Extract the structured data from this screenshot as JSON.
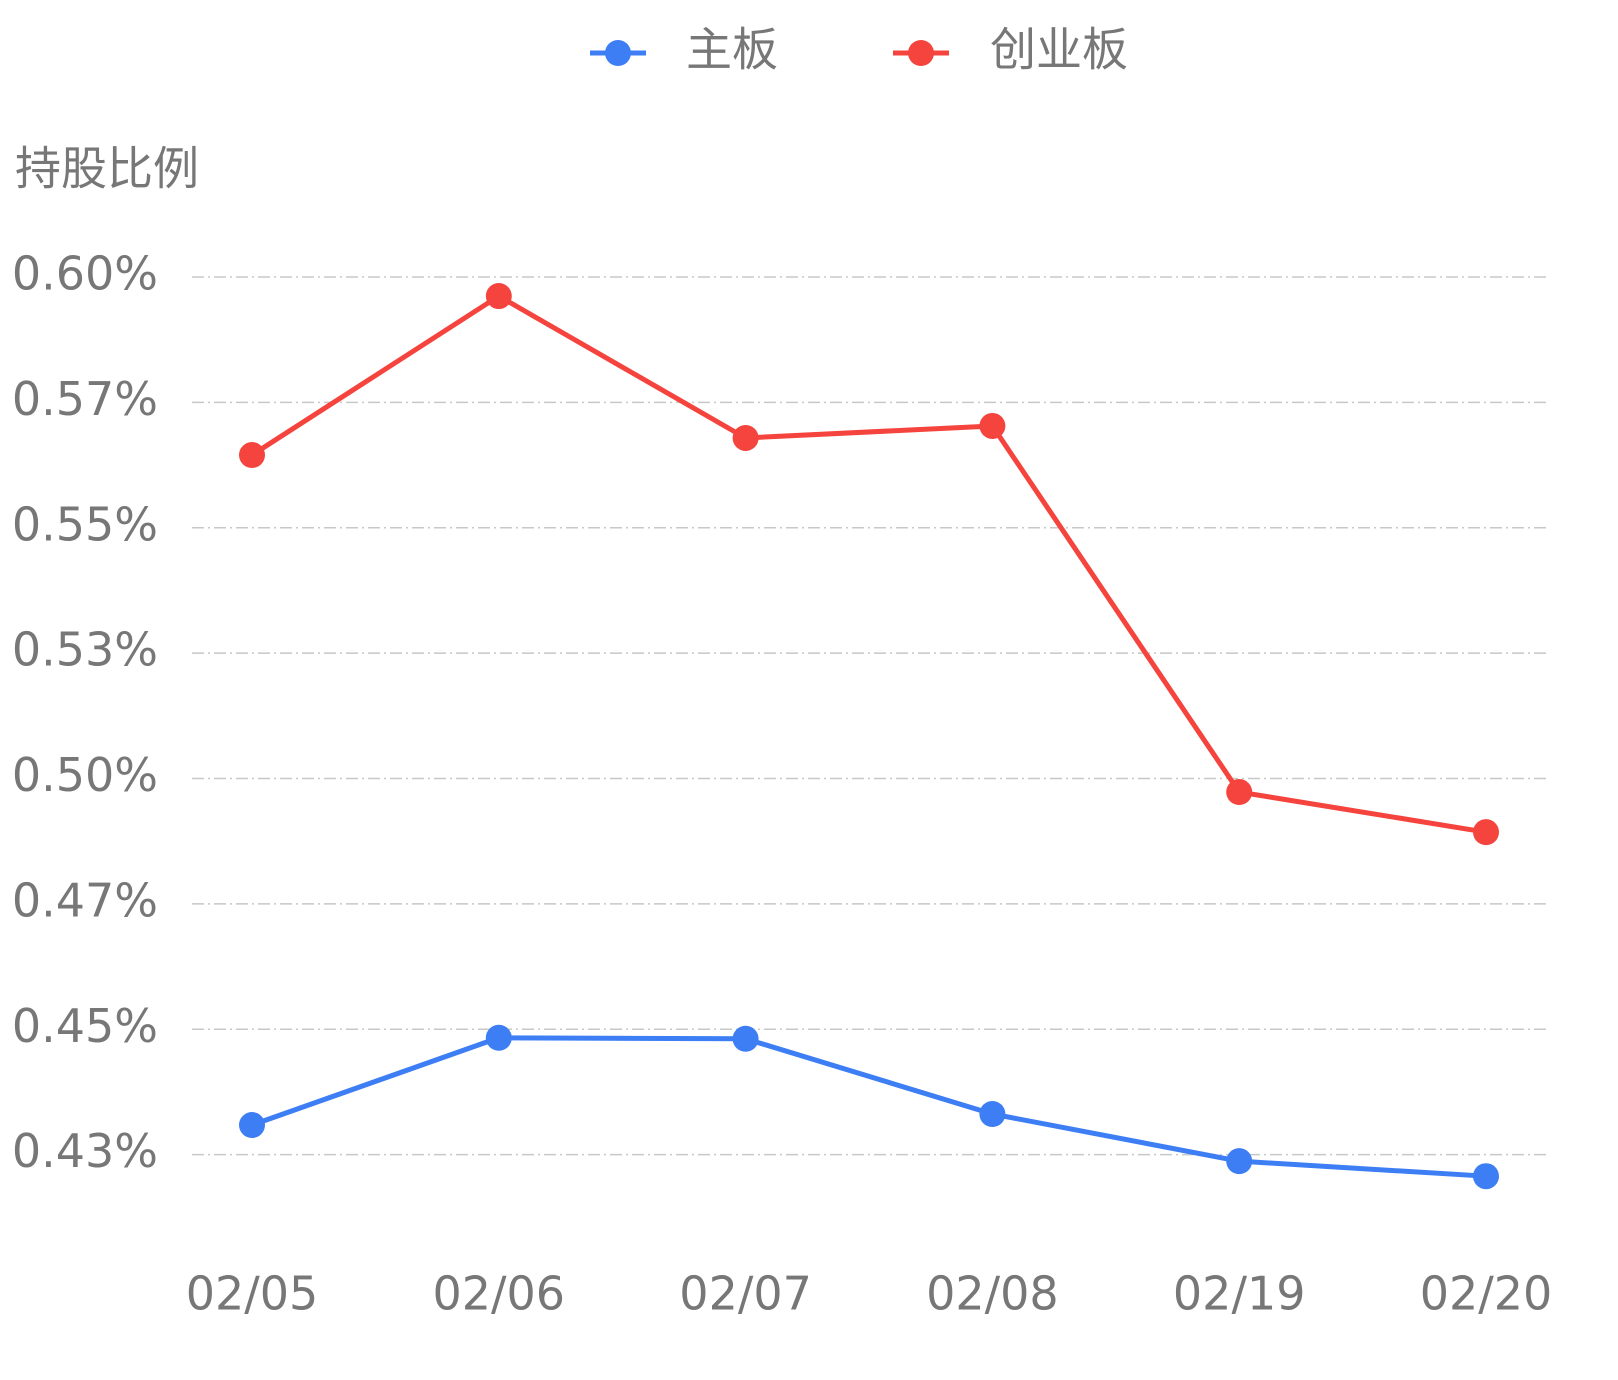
{
  "chart_data": {
    "type": "line",
    "y_axis_label": "持股比例",
    "categories": [
      "02/05",
      "02/06",
      "02/07",
      "02/08",
      "02/19",
      "02/20"
    ],
    "series": [
      {
        "name": "主板",
        "color": "#3d7ef5",
        "values": [
          0.4309,
          0.4483,
          0.4481,
          0.4331,
          0.4237,
          0.4207
        ]
      },
      {
        "name": "创业板",
        "color": "#f5433d",
        "values": [
          0.5645,
          0.5962,
          0.5679,
          0.5703,
          0.4973,
          0.4893
        ]
      }
    ],
    "ylim": [
      0.4,
      0.6
    ],
    "yticks": [
      {
        "value": 0.425,
        "label": "0.43%"
      },
      {
        "value": 0.45,
        "label": "0.45%"
      },
      {
        "value": 0.475,
        "label": "0.47%"
      },
      {
        "value": 0.5,
        "label": "0.50%"
      },
      {
        "value": 0.525,
        "label": "0.53%"
      },
      {
        "value": 0.55,
        "label": "0.55%"
      },
      {
        "value": 0.575,
        "label": "0.57%"
      },
      {
        "value": 0.6,
        "label": "0.60%"
      }
    ],
    "grid": true,
    "legend": "top"
  }
}
